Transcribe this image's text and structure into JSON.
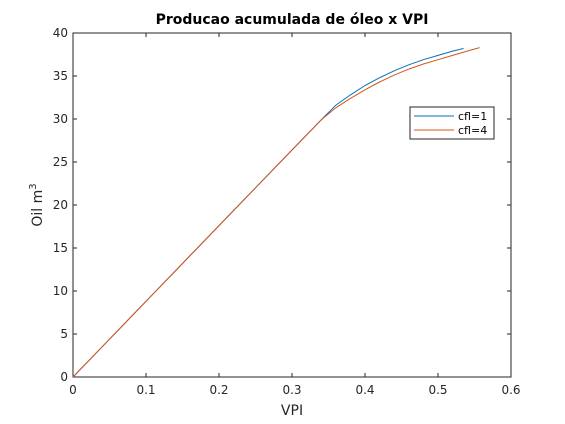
{
  "chart_data": {
    "type": "line",
    "title": "Producao acumulada de óleo x VPI",
    "xlabel": "VPI",
    "ylabel_base": "Oil m",
    "ylabel_sup": "3",
    "xlim": [
      0,
      0.6
    ],
    "ylim": [
      0,
      40
    ],
    "xticks": [
      0,
      0.1,
      0.2,
      0.3,
      0.4,
      0.5,
      0.6
    ],
    "yticks": [
      0,
      5,
      10,
      15,
      20,
      25,
      30,
      35,
      40
    ],
    "xtick_labels": [
      "0",
      "0.1",
      "0.2",
      "0.3",
      "0.4",
      "0.5",
      "0.6"
    ],
    "ytick_labels": [
      "0",
      "5",
      "10",
      "15",
      "20",
      "25",
      "30",
      "35",
      "40"
    ],
    "grid": false,
    "legend_position": "top-right",
    "series": [
      {
        "name": "cfl=1",
        "color": "#0072BD",
        "x": [
          0,
          0.05,
          0.1,
          0.15,
          0.2,
          0.25,
          0.3,
          0.34,
          0.36,
          0.38,
          0.4,
          0.42,
          0.44,
          0.46,
          0.48,
          0.5,
          0.52,
          0.535
        ],
        "y": [
          0,
          4.4,
          8.8,
          13.2,
          17.6,
          22.0,
          26.4,
          29.9,
          31.6,
          32.8,
          33.9,
          34.8,
          35.6,
          36.3,
          36.9,
          37.4,
          37.9,
          38.2
        ]
      },
      {
        "name": "cfl=4",
        "color": "#D95319",
        "x": [
          0,
          0.05,
          0.1,
          0.15,
          0.2,
          0.25,
          0.3,
          0.34,
          0.36,
          0.38,
          0.4,
          0.42,
          0.44,
          0.46,
          0.48,
          0.5,
          0.52,
          0.54,
          0.557
        ],
        "y": [
          0,
          4.4,
          8.8,
          13.2,
          17.6,
          22.0,
          26.4,
          29.9,
          31.3,
          32.4,
          33.4,
          34.3,
          35.1,
          35.8,
          36.4,
          36.9,
          37.4,
          37.9,
          38.3
        ]
      }
    ]
  }
}
